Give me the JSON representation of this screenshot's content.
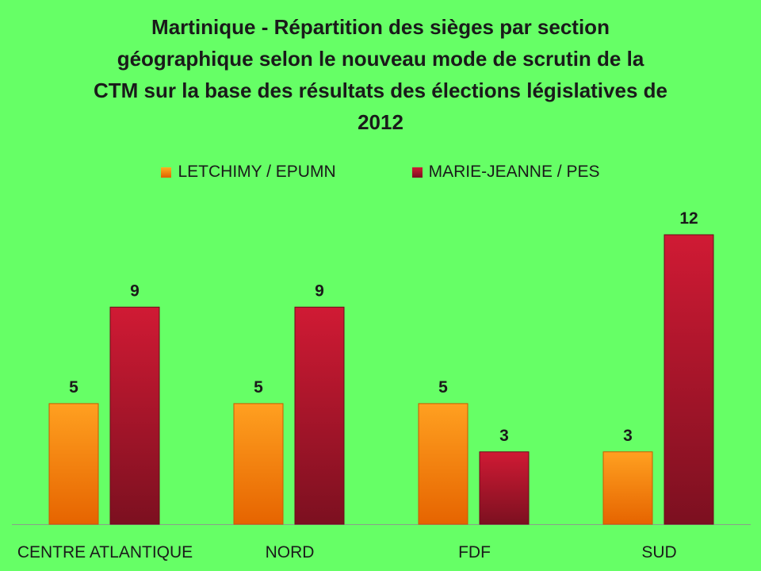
{
  "chart_data": {
    "type": "bar",
    "title": "Martinique - Répartition des sièges par section géographique selon le nouveau mode de scrutin de la CTM sur la base des résultats des élections législatives de 2012",
    "title_lines": [
      "Martinique - Répartition des sièges par section",
      "géographique selon le nouveau mode de scrutin de la",
      "CTM sur la base des résultats des élections législatives de",
      "2012"
    ],
    "categories": [
      "CENTRE ATLANTIQUE",
      "NORD",
      "FDF",
      "SUD"
    ],
    "series": [
      {
        "name": "LETCHIMY / EPUMN",
        "values": [
          5,
          5,
          5,
          3
        ],
        "color": "#f07c0a"
      },
      {
        "name": "MARIE-JEANNE / PES",
        "values": [
          9,
          9,
          3,
          12
        ],
        "color": "#a01428"
      }
    ],
    "ylim": [
      0,
      12
    ],
    "grid": false,
    "legend_position": "top",
    "background": "#66ff66"
  }
}
